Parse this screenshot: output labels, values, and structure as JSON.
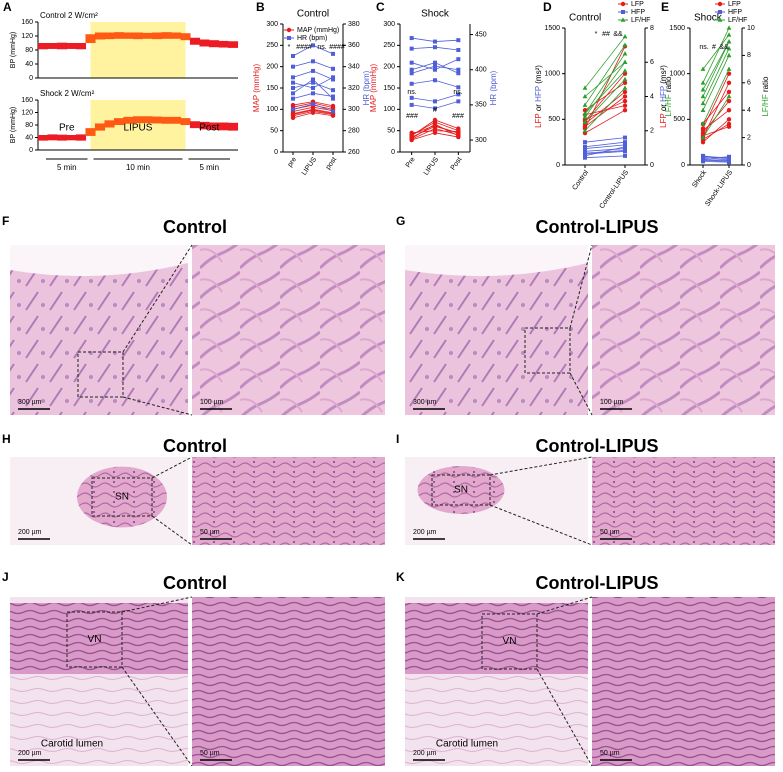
{
  "chart_data": [
    {
      "type": "trace",
      "panel": "A",
      "title": "Control 2 W/cm²",
      "y_label": "BP (mmHg)",
      "ylim": [
        0,
        160
      ],
      "yticks": [
        0,
        40,
        80,
        120,
        160
      ],
      "xlim": [
        0,
        20
      ],
      "shade": [
        5,
        15
      ],
      "color": "#ed1c24",
      "phase_color": "#ff5a14",
      "shade_color": "#fff3a0",
      "x": [
        0,
        1,
        2,
        3,
        4,
        5,
        6,
        7,
        8,
        9,
        10,
        11,
        12,
        13,
        14,
        15,
        16,
        17,
        18,
        19,
        20
      ],
      "high": [
        100,
        100,
        101,
        100,
        100,
        125,
        130,
        130,
        131,
        130,
        130,
        129,
        130,
        131,
        130,
        128,
        115,
        110,
        108,
        106,
        105
      ],
      "low": [
        82,
        83,
        82,
        83,
        82,
        100,
        110,
        111,
        112,
        112,
        111,
        112,
        111,
        112,
        112,
        108,
        95,
        90,
        88,
        87,
        86
      ]
    },
    {
      "type": "trace",
      "title": "Shock 2 W/cm²",
      "y_label": "BP (mmHg)",
      "ylim": [
        0,
        160
      ],
      "yticks": [
        0,
        40,
        80,
        120,
        160
      ],
      "xlim": [
        0,
        20
      ],
      "shade": [
        5,
        15
      ],
      "color": "#ed1c24",
      "phase_color": "#ff5a14",
      "shade_color": "#fff3a0",
      "x": [
        0,
        1,
        2,
        3,
        4,
        5,
        6,
        7,
        8,
        9,
        10,
        11,
        12,
        13,
        14,
        15,
        16,
        17,
        18,
        19,
        20
      ],
      "high": [
        48,
        50,
        49,
        48,
        50,
        70,
        85,
        95,
        102,
        106,
        108,
        108,
        107,
        106,
        106,
        102,
        92,
        90,
        88,
        88,
        87
      ],
      "low": [
        30,
        31,
        30,
        31,
        30,
        45,
        62,
        72,
        80,
        84,
        86,
        86,
        85,
        84,
        84,
        80,
        70,
        66,
        64,
        63,
        62
      ],
      "phases": [
        {
          "label": "Pre",
          "duration": "5 min"
        },
        {
          "label": "LIPUS",
          "duration": "10 min"
        },
        {
          "label": "Post",
          "duration": "5 min"
        }
      ]
    },
    {
      "type": "paired-line",
      "panel": "B",
      "title": "Control",
      "categories": [
        "pre",
        "LIPUS",
        "post"
      ],
      "ylim": [
        0,
        300
      ],
      "yticks": [
        0,
        50,
        100,
        150,
        200,
        250,
        300
      ],
      "y2lim": [
        260,
        380
      ],
      "y2ticks": [
        260,
        280,
        300,
        320,
        340,
        360,
        380
      ],
      "y_label": [
        {
          "text": "MAP (mmHg)",
          "color": "#e41a1c"
        }
      ],
      "y2_label": [
        {
          "text": "HR (bpm)",
          "color": "#4f5fd8"
        }
      ],
      "legend": "top-left",
      "series": [
        {
          "name": "MAP (mmHg)",
          "color": "#e41a1c",
          "marker": "circle",
          "lines": [
            [
              85,
              95,
              88
            ],
            [
              80,
              92,
              85
            ],
            [
              90,
              100,
              92
            ],
            [
              95,
              105,
              97
            ],
            [
              100,
              110,
              100
            ],
            [
              105,
              115,
              104
            ],
            [
              110,
              118,
              108
            ],
            [
              88,
              98,
              90
            ]
          ]
        },
        {
          "name": "HR (bpm)",
          "color": "#4f5fd8",
          "marker": "square",
          "axis": "y2",
          "lines": [
            [
              300,
              305,
              298
            ],
            [
              310,
              315,
              312
            ],
            [
              320,
              325,
              318
            ],
            [
              330,
              336,
              328
            ],
            [
              340,
              345,
              338
            ],
            [
              350,
              360,
              352
            ],
            [
              315,
              328,
              310
            ],
            [
              325,
              320,
              330
            ]
          ]
        }
      ],
      "annotations": [
        {
          "text": "*",
          "color": "#4f5fd8"
        },
        {
          "text": "####",
          "color": "#e41a1c"
        },
        {
          "text": "ns.",
          "color": "#4f5fd8"
        },
        {
          "text": "####",
          "color": "#e41a1c"
        }
      ]
    },
    {
      "type": "paired-line",
      "panel": "C",
      "title": "Shock",
      "categories": [
        "Pre",
        "LIPUS",
        "Post"
      ],
      "ylim": [
        0,
        300
      ],
      "yticks": [
        0,
        50,
        100,
        150,
        200,
        250,
        300
      ],
      "y2lim": [
        283,
        465
      ],
      "y2ticks": [
        300,
        350,
        400,
        450
      ],
      "y_label": [
        {
          "text": "MAP (mmHg)",
          "color": "#e41a1c"
        }
      ],
      "y2_label": [
        {
          "text": "HR (bpm)",
          "color": "#4f5fd8"
        }
      ],
      "series": [
        {
          "name": "MAP (mmHg)",
          "color": "#e41a1c",
          "marker": "circle",
          "lines": [
            [
              30,
              55,
              40
            ],
            [
              35,
              60,
              45
            ],
            [
              40,
              70,
              50
            ],
            [
              32,
              65,
              38
            ],
            [
              38,
              75,
              55
            ],
            [
              45,
              50,
              48
            ],
            [
              28,
              45,
              35
            ],
            [
              42,
              62,
              44
            ]
          ]
        },
        {
          "name": "HR (bpm)",
          "color": "#4f5fd8",
          "marker": "square",
          "axis": "y2",
          "lines": [
            [
              445,
              440,
              442
            ],
            [
              430,
              432,
              428
            ],
            [
              410,
              400,
              415
            ],
            [
              395,
              405,
              400
            ],
            [
              380,
              385,
              375
            ],
            [
              360,
              355,
              365
            ],
            [
              350,
              345,
              355
            ],
            [
              400,
              410,
              395
            ]
          ]
        }
      ],
      "annotations": [
        {
          "text": "ns.",
          "color": "#4f5fd8"
        },
        {
          "text": "ns.",
          "color": "#4f5fd8"
        },
        {
          "text": "###",
          "color": "#e41a1c"
        },
        {
          "text": "#",
          "color": "#e41a1c"
        },
        {
          "text": "###",
          "color": "#e41a1c"
        }
      ]
    },
    {
      "type": "paired-line",
      "panel": "D",
      "title": "Control",
      "categories": [
        "Control",
        "Control-LIPUS"
      ],
      "ylim": [
        0,
        1500
      ],
      "yticks": [
        0,
        500,
        1000,
        1500
      ],
      "y2lim": [
        0,
        8
      ],
      "y2ticks": [
        0,
        2,
        4,
        6,
        8
      ],
      "y_label": [
        {
          "text": "LFP",
          "color": "#e41a1c"
        },
        {
          "text": " or ",
          "color": "#000000"
        },
        {
          "text": "HFP",
          "color": "#4f5fd8"
        },
        {
          "text": " (ms²)",
          "color": "#000000"
        }
      ],
      "y2_label": [
        {
          "text": "LF/HF",
          "color": "#2ca02c"
        },
        {
          "text": " ratio",
          "color": "#000000"
        }
      ],
      "legend": "top-right",
      "series": [
        {
          "name": "LFP",
          "color": "#e41a1c",
          "marker": "circle",
          "lines": [
            [
              400,
              1300
            ],
            [
              450,
              800
            ],
            [
              500,
              700
            ],
            [
              550,
              650
            ],
            [
              350,
              600
            ],
            [
              600,
              900
            ],
            [
              480,
              1000
            ],
            [
              420,
              750
            ]
          ]
        },
        {
          "name": "HFP",
          "color": "#4f5fd8",
          "marker": "square",
          "lines": [
            [
              100,
              200
            ],
            [
              150,
              180
            ],
            [
              200,
              250
            ],
            [
              120,
              150
            ],
            [
              80,
              100
            ],
            [
              250,
              300
            ],
            [
              180,
              220
            ],
            [
              130,
              160
            ]
          ]
        },
        {
          "name": "LF/HF",
          "color": "#2ca02c",
          "marker": "triangle",
          "axis": "y2",
          "lines": [
            [
              3,
              6.5
            ],
            [
              2.5,
              5
            ],
            [
              4,
              6
            ],
            [
              3.5,
              7
            ],
            [
              2,
              4.5
            ],
            [
              4.5,
              7.5
            ],
            [
              3,
              5.5
            ],
            [
              2.8,
              6
            ]
          ]
        }
      ],
      "annotations": [
        {
          "text": "*",
          "color": "#4f5fd8"
        },
        {
          "text": "##",
          "color": "#e41a1c"
        },
        {
          "text": "&&",
          "color": "#2ca02c"
        }
      ]
    },
    {
      "type": "paired-line",
      "panel": "E",
      "title": "Shock",
      "categories": [
        "Shock",
        "Shock-LIPUS"
      ],
      "ylim": [
        0,
        1500
      ],
      "yticks": [
        0,
        500,
        1000,
        1500
      ],
      "y2lim": [
        0,
        10
      ],
      "y2ticks": [
        0,
        2,
        4,
        6,
        8,
        10
      ],
      "y_label": [
        {
          "text": "LFP",
          "color": "#e41a1c"
        },
        {
          "text": " or ",
          "color": "#000000"
        },
        {
          "text": "HFP",
          "color": "#4f5fd8"
        },
        {
          "text": " (ms²)",
          "color": "#000000"
        }
      ],
      "y2_label": [
        {
          "text": "LF/HF",
          "color": "#2ca02c"
        },
        {
          "text": " ratio",
          "color": "#000000"
        }
      ],
      "legend": "top-right",
      "series": [
        {
          "name": "LFP",
          "color": "#e41a1c",
          "marker": "circle",
          "lines": [
            [
              300,
              900
            ],
            [
              350,
              700
            ],
            [
              400,
              1000
            ],
            [
              250,
              500
            ],
            [
              450,
              800
            ],
            [
              380,
              600
            ],
            [
              320,
              420
            ],
            [
              280,
              450
            ]
          ]
        },
        {
          "name": "HFP",
          "color": "#4f5fd8",
          "marker": "square",
          "lines": [
            [
              80,
              60
            ],
            [
              60,
              50
            ],
            [
              100,
              70
            ],
            [
              50,
              40
            ],
            [
              70,
              90
            ],
            [
              90,
              80
            ],
            [
              40,
              30
            ],
            [
              60,
              50
            ]
          ]
        },
        {
          "name": "LF/HF",
          "color": "#2ca02c",
          "marker": "triangle",
          "axis": "y2",
          "lines": [
            [
              4,
              8
            ],
            [
              5,
              9
            ],
            [
              6,
              10
            ],
            [
              3,
              7
            ],
            [
              7,
              9.5
            ],
            [
              4.5,
              8.5
            ],
            [
              2,
              5
            ],
            [
              5.5,
              9
            ]
          ]
        }
      ],
      "annotations": [
        {
          "text": "ns.",
          "color": "#4f5fd8"
        },
        {
          "text": "#",
          "color": "#e41a1c"
        },
        {
          "text": "&&",
          "color": "#2ca02c"
        }
      ]
    }
  ],
  "histology": [
    {
      "panel": "F",
      "title": "Control",
      "scale_bars": [
        "300 µm",
        "100 µm"
      ]
    },
    {
      "panel": "G",
      "title": "Control-LIPUS",
      "scale_bars": [
        "300 µm",
        "100 µm"
      ]
    },
    {
      "panel": "H",
      "title": "Control",
      "box_label": "SN",
      "scale_bars": [
        "200 µm",
        "50 µm"
      ]
    },
    {
      "panel": "I",
      "title": "Control-LIPUS",
      "box_label": "SN",
      "scale_bars": [
        "200 µm",
        "50 µm"
      ]
    },
    {
      "panel": "J",
      "title": "Control",
      "box_label": "VN",
      "region_label": "Carotid lumen",
      "scale_bars": [
        "200 µm",
        "50 µm"
      ]
    },
    {
      "panel": "K",
      "title": "Control-LIPUS",
      "box_label": "VN",
      "region_label": "Carotid lumen",
      "scale_bars": [
        "200 µm",
        "50 µm"
      ]
    }
  ]
}
